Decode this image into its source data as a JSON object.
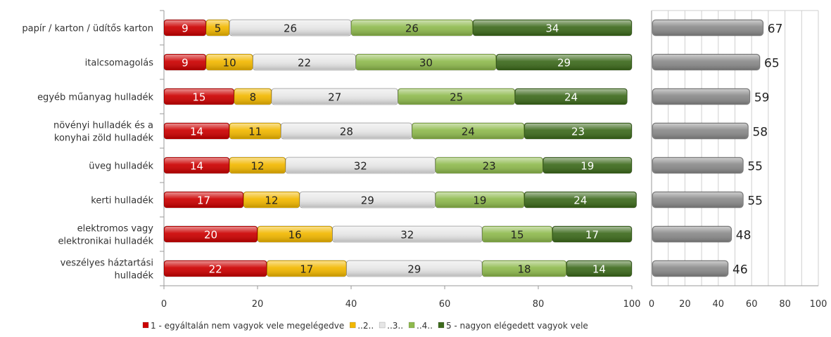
{
  "chart_data": [
    {
      "type": "bar",
      "orientation": "horizontal",
      "stacked": true,
      "categories": [
        [
          "papír / karton / üdítős karton"
        ],
        [
          "italcsomagolás"
        ],
        [
          "egyéb műanyag hulladék"
        ],
        [
          "növényi hulladék és a",
          "konyhai zöld hulladék"
        ],
        [
          "üveg hulladék"
        ],
        [
          "kerti hulladék"
        ],
        [
          "elektromos vagy",
          "elektronikai hulladék"
        ],
        [
          "veszélyes háztartási",
          "hulladék"
        ]
      ],
      "series": [
        {
          "name": "1 - egyáltalán nem vagyok vele megelégedve",
          "color": "#cc0000",
          "label_color": "#ffffff",
          "values": [
            9,
            9,
            15,
            14,
            14,
            17,
            20,
            22
          ]
        },
        {
          "name": "..2..",
          "color": "#f2b800",
          "label_color": "#222222",
          "values": [
            5,
            10,
            8,
            11,
            12,
            12,
            16,
            17
          ]
        },
        {
          "name": "..3..",
          "color": "#e6e6e6",
          "label_color": "#222222",
          "values": [
            26,
            22,
            27,
            28,
            32,
            29,
            32,
            29
          ]
        },
        {
          "name": "..4..",
          "color": "#8fba4e",
          "label_color": "#222222",
          "values": [
            26,
            30,
            25,
            24,
            23,
            19,
            15,
            18
          ]
        },
        {
          "name": "5 - nagyon elégedett vagyok vele",
          "color": "#3d6a1c",
          "label_color": "#ffffff",
          "values": [
            34,
            29,
            24,
            23,
            19,
            24,
            17,
            14
          ]
        }
      ],
      "xlim": [
        0,
        100
      ],
      "xticks": [
        "0",
        "20",
        "40",
        "60",
        "80",
        "100"
      ],
      "legend_position": "bottom",
      "legend_markers": [
        "1 - egyáltalán nem vagyok vele megelégedve",
        "..2..",
        "..3..",
        "..4..",
        "5 - nagyon elégedett vagyok vele"
      ]
    },
    {
      "type": "bar",
      "orientation": "horizontal",
      "color": "#8a8a8a",
      "values": [
        67,
        65,
        59,
        58,
        55,
        55,
        48,
        46
      ],
      "xlim": [
        0,
        100
      ],
      "xticks": [
        "0",
        "20",
        "40",
        "60",
        "80",
        "100"
      ],
      "grid": true
    }
  ],
  "legend_labels": [
    "1 - egyáltalán nem vagyok vele megelégedve",
    "..2..",
    "..3..",
    "..4..",
    "5 - nagyon elégedett vagyok vele"
  ]
}
